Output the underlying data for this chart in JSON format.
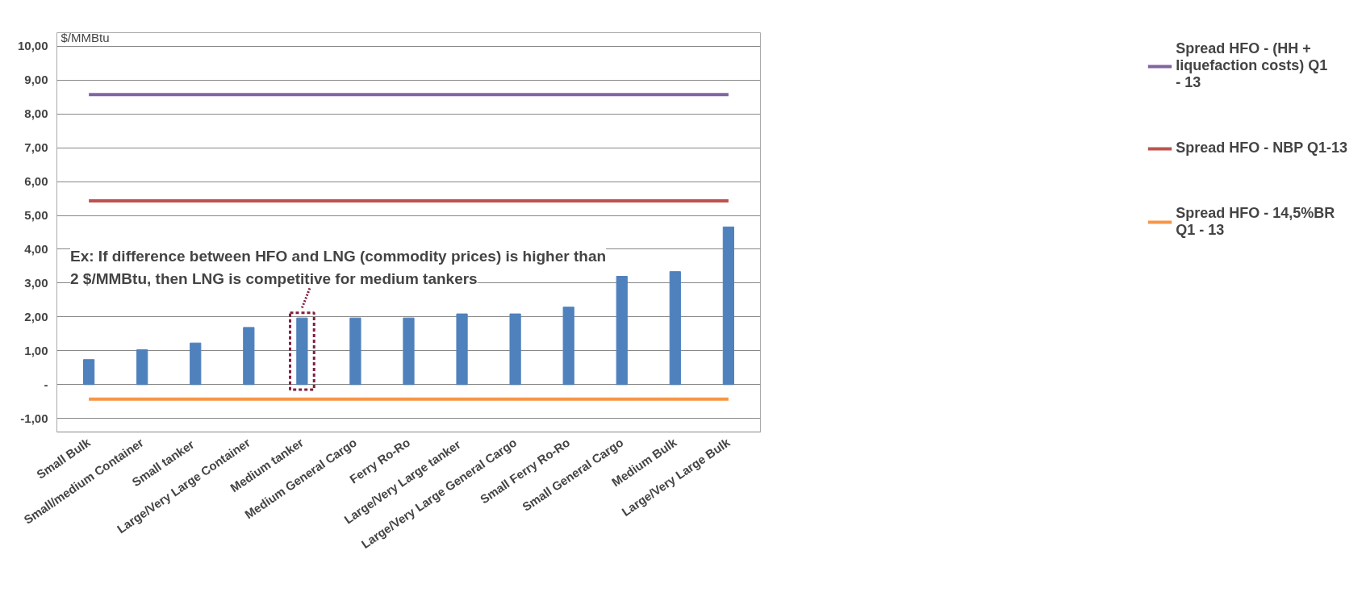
{
  "chart_data": {
    "type": "bar",
    "ylabel": "$/MMBtu",
    "categories": [
      "Small Bulk",
      "Small/medium Container",
      "Small  tanker",
      "Large/Very Large Container",
      "Medium tanker",
      "Medium General Cargo",
      "Ferry Ro-Ro",
      "Large/Very Large  tanker",
      "Large/Very Large General Cargo",
      "Small Ferry Ro-Ro",
      "Small General Cargo",
      "Medium Bulk",
      "Large/Very Large Bulk"
    ],
    "series": [
      {
        "color": "#4f81bd",
        "values": [
          0.74,
          1.03,
          1.23,
          1.69,
          1.97,
          1.97,
          1.97,
          2.09,
          2.09,
          2.29,
          3.2,
          3.34,
          4.66
        ]
      },
      {
        "type": "line",
        "name": "Spread HFO - (HH + liquefaction costs) Q1 - 13",
        "color": "#8064a2",
        "values": [
          8.57,
          8.57,
          8.57,
          8.57,
          8.57,
          8.57,
          8.57,
          8.57,
          8.57,
          8.57,
          8.57,
          8.57,
          8.57
        ]
      },
      {
        "type": "line",
        "name": "Spread HFO - NBP Q1-13",
        "color": "#c0504d",
        "values": [
          5.43,
          5.43,
          5.43,
          5.43,
          5.43,
          5.43,
          5.43,
          5.43,
          5.43,
          5.43,
          5.43,
          5.43,
          5.43
        ]
      },
      {
        "type": "line",
        "name": "Spread HFO - 14,5%BR Q1 - 13",
        "color": "#f79646",
        "values": [
          -0.43,
          -0.43,
          -0.43,
          -0.43,
          -0.43,
          -0.43,
          -0.43,
          -0.43,
          -0.43,
          -0.43,
          -0.43,
          -0.43,
          -0.43
        ]
      }
    ],
    "ylim": [
      -1.4,
      10.4
    ],
    "yticks": [
      {
        "value": -1,
        "label": "-1,00"
      },
      {
        "value": 0,
        "label": "-"
      },
      {
        "value": 1,
        "label": "1,00"
      },
      {
        "value": 2,
        "label": "2,00"
      },
      {
        "value": 3,
        "label": "3,00"
      },
      {
        "value": 4,
        "label": "4,00"
      },
      {
        "value": 5,
        "label": "5,00"
      },
      {
        "value": 6,
        "label": "6,00"
      },
      {
        "value": 7,
        "label": "7,00"
      },
      {
        "value": 8,
        "label": "8,00"
      },
      {
        "value": 9,
        "label": "9,00"
      },
      {
        "value": 10,
        "label": "10,00"
      }
    ],
    "grid": "y",
    "legend": "right",
    "annotations": [
      {
        "text": "Ex: If difference between HFO and LNG (commodity prices) is higher than 2 $/MMBtu, then LNG is competitive for medium tankers",
        "x": "Medium tanker",
        "y": 1.97
      }
    ]
  }
}
